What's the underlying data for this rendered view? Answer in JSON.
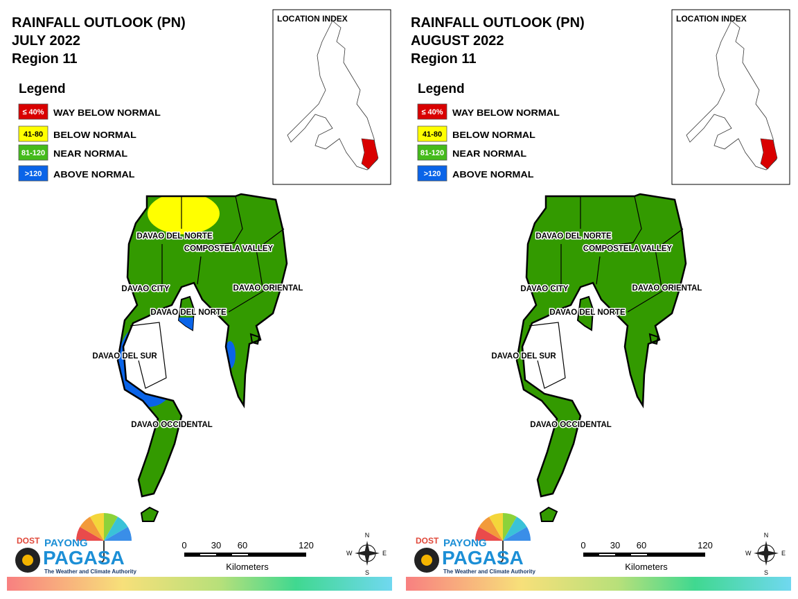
{
  "panels": [
    {
      "title": "RAINFALL OUTLOOK (PN)",
      "month": "JULY 2022",
      "region": "Region 11",
      "legend_title": "Legend",
      "legend": [
        {
          "range": "≤ 40%",
          "label": "WAY BELOW NORMAL",
          "color": "#d90000"
        },
        {
          "range": "41-80",
          "label": "BELOW NORMAL",
          "color": "#ffff00"
        },
        {
          "range": "81-120",
          "label": "NEAR NORMAL",
          "color": "#44bb1a"
        },
        {
          "range": ">120",
          "label": "ABOVE NORMAL",
          "color": "#0a64e8"
        }
      ],
      "location_index": "LOCATION INDEX",
      "map_labels": [
        "DAVAO DEL NORTE",
        "COMPOSTELA VALLEY",
        "DAVAO CITY",
        "DAVAO ORIENTAL",
        "DAVAO DEL NORTE",
        "DAVAO DEL SUR",
        "DAVAO OCCIDENTAL"
      ],
      "scale": {
        "ticks": [
          "0",
          "30",
          "60",
          "120"
        ],
        "unit": "Kilometers"
      },
      "compass": {
        "n": "N",
        "e": "E",
        "s": "S",
        "w": "W"
      },
      "logo": {
        "dost": "DOST",
        "payong": "PAYONG",
        "pagasa": "PAGASA",
        "tagline": "The Weather and Climate Authority"
      }
    },
    {
      "title": "RAINFALL OUTLOOK (PN)",
      "month": "AUGUST 2022",
      "region": "Region 11",
      "legend_title": "Legend",
      "legend": [
        {
          "range": "≤ 40%",
          "label": "WAY BELOW NORMAL",
          "color": "#d90000"
        },
        {
          "range": "41-80",
          "label": "BELOW NORMAL",
          "color": "#ffff00"
        },
        {
          "range": "81-120",
          "label": "NEAR NORMAL",
          "color": "#44bb1a"
        },
        {
          "range": ">120",
          "label": "ABOVE NORMAL",
          "color": "#0a64e8"
        }
      ],
      "location_index": "LOCATION INDEX",
      "map_labels": [
        "DAVAO DEL NORTE",
        "COMPOSTELA VALLEY",
        "DAVAO CITY",
        "DAVAO ORIENTAL",
        "DAVAO DEL NORTE",
        "DAVAO DEL SUR",
        "DAVAO OCCIDENTAL"
      ],
      "scale": {
        "ticks": [
          "0",
          "30",
          "60",
          "120"
        ],
        "unit": "Kilometers"
      },
      "compass": {
        "n": "N",
        "e": "E",
        "s": "S",
        "w": "W"
      },
      "logo": {
        "dost": "DOST",
        "payong": "PAYONG",
        "pagasa": "PAGASA",
        "tagline": "The Weather and Climate Authority"
      }
    }
  ]
}
